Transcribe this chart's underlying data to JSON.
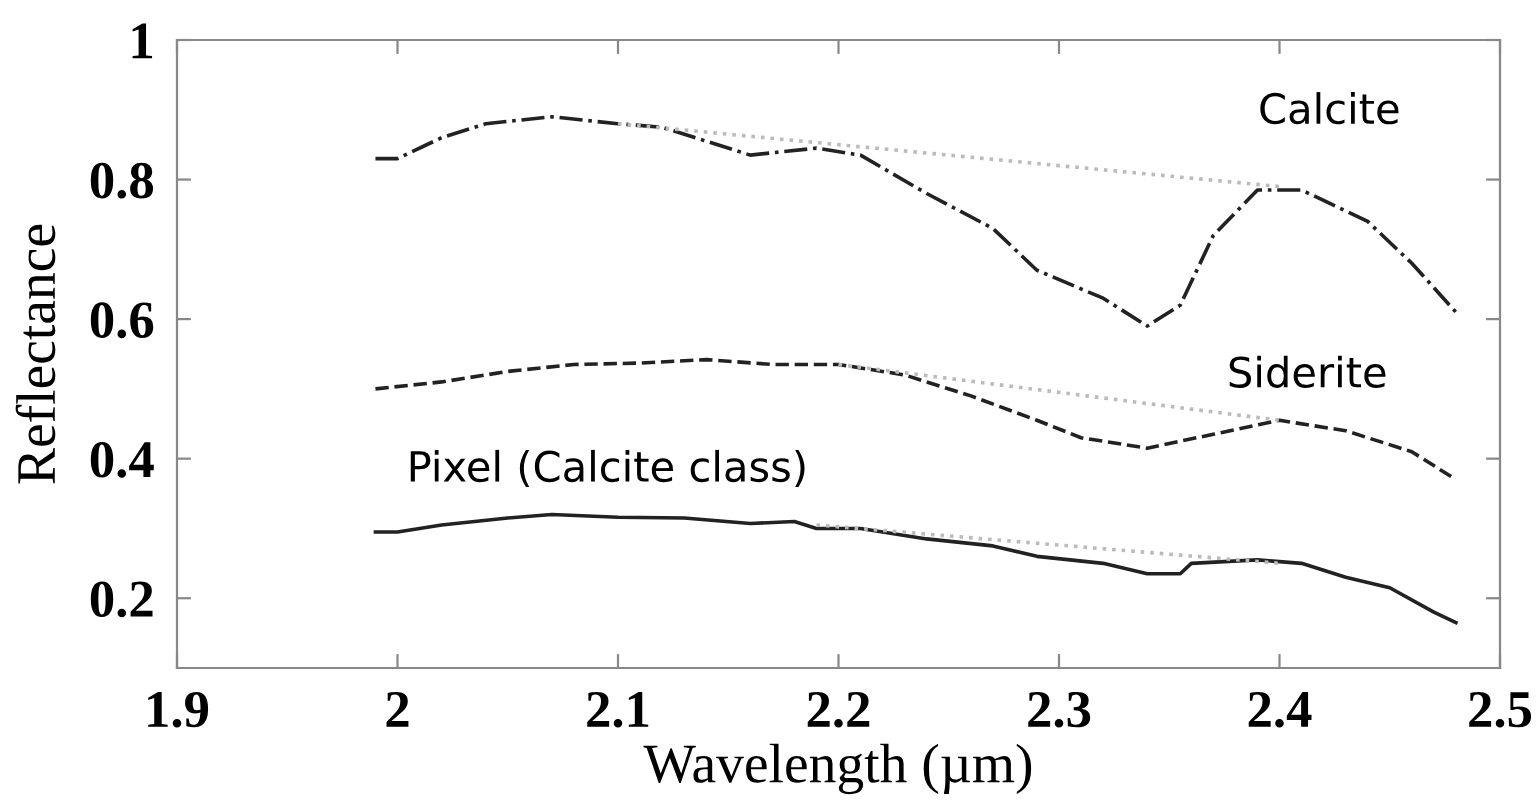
{
  "chart_data": {
    "type": "line",
    "xlabel": "Wavelength (µm)",
    "ylabel": "Reflectance",
    "xlim": [
      1.9,
      2.5
    ],
    "xticks": [
      1.9,
      2,
      2.1,
      2.2,
      2.3,
      2.4,
      2.5
    ],
    "ylim": [
      0.1,
      1
    ],
    "yticks": [
      0.2,
      0.4,
      0.6,
      0.8,
      1
    ],
    "grid": false,
    "legend": false,
    "series": [
      {
        "name": "Calcite",
        "color": "#222222",
        "line_style": "dashdot",
        "x": [
          1.99,
          2.0,
          2.02,
          2.04,
          2.07,
          2.1,
          2.12,
          2.16,
          2.19,
          2.21,
          2.24,
          2.27,
          2.29,
          2.32,
          2.34,
          2.355,
          2.37,
          2.39,
          2.41,
          2.44,
          2.46,
          2.48
        ],
        "values": [
          0.83,
          0.83,
          0.86,
          0.88,
          0.89,
          0.88,
          0.875,
          0.835,
          0.845,
          0.835,
          0.78,
          0.73,
          0.67,
          0.63,
          0.59,
          0.62,
          0.72,
          0.785,
          0.785,
          0.74,
          0.68,
          0.61
        ]
      },
      {
        "name": "Siderite",
        "color": "#222222",
        "line_style": "dashed",
        "x": [
          1.99,
          2.02,
          2.05,
          2.08,
          2.11,
          2.14,
          2.17,
          2.2,
          2.23,
          2.26,
          2.29,
          2.31,
          2.34,
          2.37,
          2.4,
          2.43,
          2.46,
          2.48
        ],
        "values": [
          0.5,
          0.51,
          0.525,
          0.535,
          0.537,
          0.542,
          0.535,
          0.535,
          0.52,
          0.49,
          0.455,
          0.43,
          0.415,
          0.435,
          0.455,
          0.44,
          0.41,
          0.37
        ]
      },
      {
        "name": "Pixel (Calcite class)",
        "color": "#222222",
        "line_style": "solid",
        "x": [
          1.99,
          2.0,
          2.02,
          2.05,
          2.07,
          2.1,
          2.13,
          2.16,
          2.18,
          2.19,
          2.21,
          2.24,
          2.27,
          2.29,
          2.32,
          2.34,
          2.355,
          2.36,
          2.39,
          2.41,
          2.43,
          2.45,
          2.47,
          2.48
        ],
        "values": [
          0.295,
          0.295,
          0.305,
          0.315,
          0.32,
          0.316,
          0.315,
          0.307,
          0.31,
          0.3,
          0.3,
          0.285,
          0.275,
          0.26,
          0.25,
          0.235,
          0.235,
          0.25,
          0.255,
          0.25,
          0.23,
          0.215,
          0.18,
          0.165
        ]
      },
      {
        "color": "#bbbbbb",
        "line_style": "dotted",
        "x": [
          2.1,
          2.4
        ],
        "values": [
          0.88,
          0.79
        ]
      },
      {
        "color": "#bbbbbb",
        "line_style": "dotted",
        "x": [
          2.2,
          2.4
        ],
        "values": [
          0.535,
          0.455
        ]
      },
      {
        "color": "#bbbbbb",
        "line_style": "dotted",
        "x": [
          2.19,
          2.4
        ],
        "values": [
          0.305,
          0.25
        ]
      }
    ]
  }
}
